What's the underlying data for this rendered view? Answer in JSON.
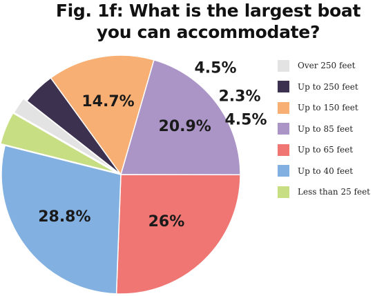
{
  "chart_data": {
    "type": "pie",
    "title": "Fig. 1f: What is the largest boat you can accommodate?",
    "title_lines": [
      "Fig. 1f: What is the largest boat",
      "you can accommodate?"
    ],
    "slices": [
      {
        "name": "Over 250 feet",
        "value": 2.3,
        "label": "2.3%",
        "color": "#e3e3e3"
      },
      {
        "name": "Up to 250 feet",
        "value": 4.5,
        "label": "4.5%",
        "color": "#3d3150"
      },
      {
        "name": "Up to 150 feet",
        "value": 14.7,
        "label": "14.7%",
        "color": "#f8af74"
      },
      {
        "name": "Up to 85 feet",
        "value": 20.9,
        "label": "20.9%",
        "color": "#ab95c6"
      },
      {
        "name": "Up to 65 feet",
        "value": 26,
        "label": "26%",
        "color": "#ef7673"
      },
      {
        "name": "Up to 40 feet",
        "value": 28.8,
        "label": "28.8%",
        "color": "#82b1e1"
      },
      {
        "name": "Less than 25 feet",
        "value": 4.5,
        "label": "4.5%",
        "color": "#c8de82"
      }
    ],
    "legend": {
      "placement": "right"
    }
  }
}
